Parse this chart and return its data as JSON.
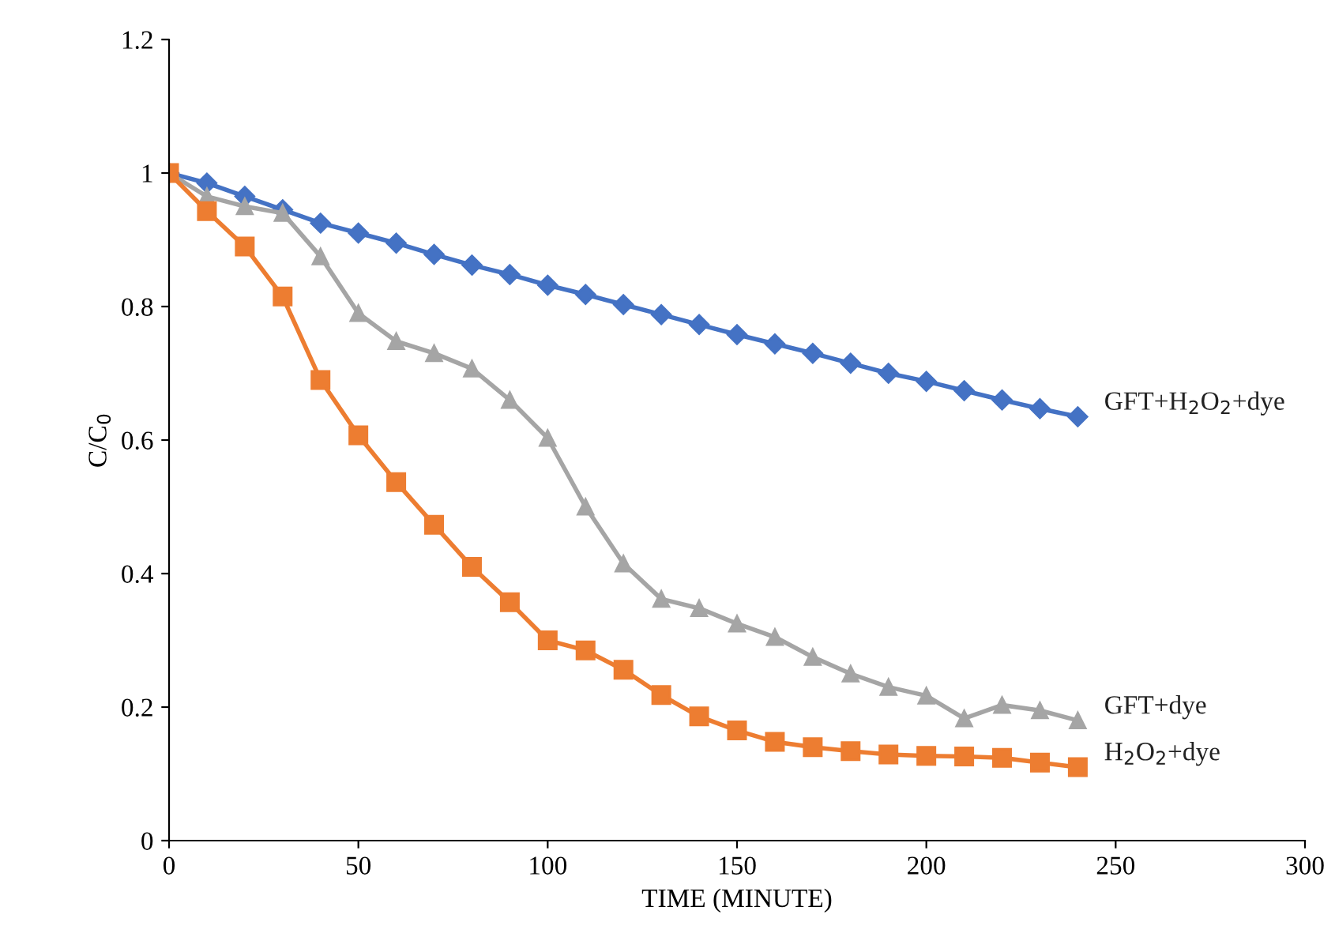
{
  "chart_data": {
    "type": "line",
    "xlabel": "TIME (MINUTE)",
    "ylabel": "C/C$_{0}$",
    "x": [
      0,
      10,
      20,
      30,
      40,
      50,
      60,
      70,
      80,
      90,
      100,
      110,
      120,
      130,
      140,
      150,
      160,
      170,
      180,
      190,
      200,
      210,
      220,
      230,
      240
    ],
    "series": [
      {
        "name": "GFT+H$_{2}$O$_{2}$+dye",
        "color": "#4472c4",
        "marker": "diamond",
        "values": [
          1,
          0.985,
          0.965,
          0.945,
          0.925,
          0.91,
          0.895,
          0.878,
          0.862,
          0.848,
          0.832,
          0.818,
          0.803,
          0.788,
          0.773,
          0.758,
          0.744,
          0.73,
          0.715,
          0.7,
          0.688,
          0.674,
          0.66,
          0.647,
          0.635
        ]
      },
      {
        "name": "GFT+dye",
        "color": "#a5a5a5",
        "marker": "triangle",
        "values": [
          1,
          0.965,
          0.95,
          0.94,
          0.875,
          0.79,
          0.748,
          0.73,
          0.707,
          0.66,
          0.603,
          0.5,
          0.415,
          0.362,
          0.348,
          0.325,
          0.305,
          0.275,
          0.25,
          0.23,
          0.217,
          0.183,
          0.203,
          0.195,
          0.18
        ]
      },
      {
        "name": "H$_{2}$O$_{2}$+dye",
        "color": "#ed7d31",
        "marker": "square",
        "values": [
          1,
          0.943,
          0.89,
          0.815,
          0.69,
          0.607,
          0.537,
          0.473,
          0.41,
          0.357,
          0.3,
          0.285,
          0.256,
          0.218,
          0.186,
          0.165,
          0.148,
          0.14,
          0.134,
          0.129,
          0.127,
          0.126,
          0.124,
          0.117,
          0.11
        ]
      }
    ],
    "xlim": [
      0,
      300
    ],
    "xticks": [
      0,
      50,
      100,
      150,
      200,
      250,
      300
    ],
    "ylim": [
      0,
      1.2
    ],
    "yticks": [
      0,
      0.2,
      0.4,
      0.6,
      0.8,
      1,
      1.2
    ],
    "grid": false,
    "legend": false,
    "line_style": "solid"
  }
}
